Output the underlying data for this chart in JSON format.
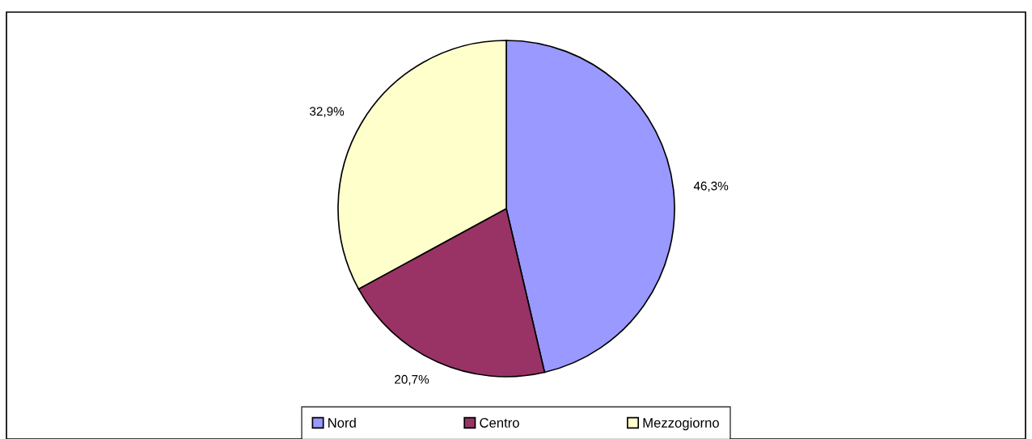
{
  "chart_data": {
    "type": "pie",
    "categories": [
      "Nord",
      "Centro",
      "Mezzogiorno"
    ],
    "values": [
      46.3,
      20.7,
      32.9
    ],
    "colors": [
      "#9999ff",
      "#993366",
      "#ffffcc"
    ],
    "value_labels": [
      "46,3%",
      "20,7%",
      "32,9%"
    ],
    "legend": "bottom"
  }
}
